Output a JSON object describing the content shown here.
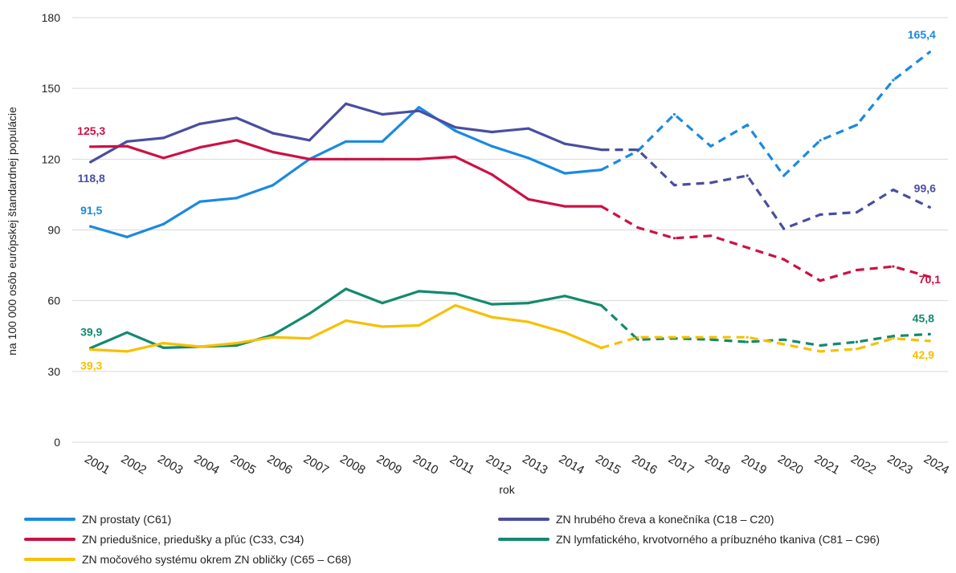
{
  "chart_data": {
    "type": "line",
    "title": "",
    "xlabel": "rok",
    "ylabel": "na 100 000 osôb európskej štandardnej populácie",
    "ylim": [
      0,
      180
    ],
    "yticks": [
      0,
      30,
      60,
      90,
      120,
      150,
      180
    ],
    "grid": true,
    "legend_position": "bottom",
    "categories": [
      "2001",
      "2002",
      "2003",
      "2004",
      "2005",
      "2006",
      "2007",
      "2008",
      "2009",
      "2010",
      "2011",
      "2012",
      "2013",
      "2014",
      "2015",
      "2016",
      "2017",
      "2018",
      "2019",
      "2020",
      "2021",
      "2022",
      "2023",
      "2024"
    ],
    "observed_until": "2015",
    "series": [
      {
        "name": "ZN prostaty (C61)",
        "color": "#1a8ae0",
        "values": [
          91.5,
          87.0,
          92.5,
          102.0,
          103.5,
          109.0,
          120.0,
          127.5,
          127.5,
          142.0,
          132.0,
          125.5,
          120.5,
          114.0,
          115.5,
          123.5,
          139.0,
          125.5,
          134.5,
          113.0,
          128.0,
          134.5,
          153.5,
          165.4
        ],
        "labels": {
          "first": "91,5",
          "last": "165,4"
        }
      },
      {
        "name": "ZN hrubého čreva a konečníka (C18 – C20)",
        "color": "#4a4ea0",
        "values": [
          118.8,
          127.5,
          129.0,
          135.0,
          137.5,
          131.0,
          128.0,
          143.5,
          139.0,
          140.5,
          133.5,
          131.5,
          133.0,
          126.5,
          124.0,
          124.0,
          109.0,
          110.0,
          113.0,
          90.5,
          96.5,
          97.5,
          107.0,
          99.6
        ],
        "labels": {
          "first": "118,8",
          "last": "99,6"
        }
      },
      {
        "name": "ZN priedušnice, priedušky a pľúc (C33, C34)",
        "color": "#cc1144",
        "values": [
          125.3,
          125.5,
          120.5,
          125.0,
          128.0,
          123.0,
          120.0,
          120.0,
          120.0,
          120.0,
          121.0,
          113.5,
          103.0,
          100.0,
          100.0,
          91.0,
          86.5,
          87.5,
          82.5,
          77.5,
          68.5,
          73.0,
          74.5,
          70.1
        ],
        "labels": {
          "first": "125,3",
          "last": "70,1"
        }
      },
      {
        "name": "ZN lymfatického, krvotvorného a príbuzného tkaniva (C81 – C96)",
        "color": "#128a6e",
        "values": [
          39.9,
          46.5,
          40.0,
          40.5,
          41.0,
          45.5,
          54.5,
          65.0,
          59.0,
          64.0,
          63.0,
          58.5,
          59.0,
          62.0,
          58.0,
          43.5,
          44.0,
          43.5,
          42.5,
          43.5,
          41.0,
          42.5,
          45.0,
          45.8
        ],
        "labels": {
          "first": "39,9",
          "last": "45,8"
        }
      },
      {
        "name": "ZN močového systému okrem ZN obličky (C65 – C68)",
        "color": "#f7c000",
        "values": [
          39.3,
          38.5,
          42.0,
          40.5,
          42.0,
          44.5,
          44.0,
          51.5,
          49.0,
          49.5,
          58.0,
          53.0,
          51.0,
          46.5,
          40.0,
          44.5,
          44.5,
          44.5,
          44.5,
          41.5,
          38.5,
          39.5,
          44.0,
          42.9
        ],
        "labels": {
          "first": "39,3",
          "last": "42,9"
        }
      }
    ]
  }
}
